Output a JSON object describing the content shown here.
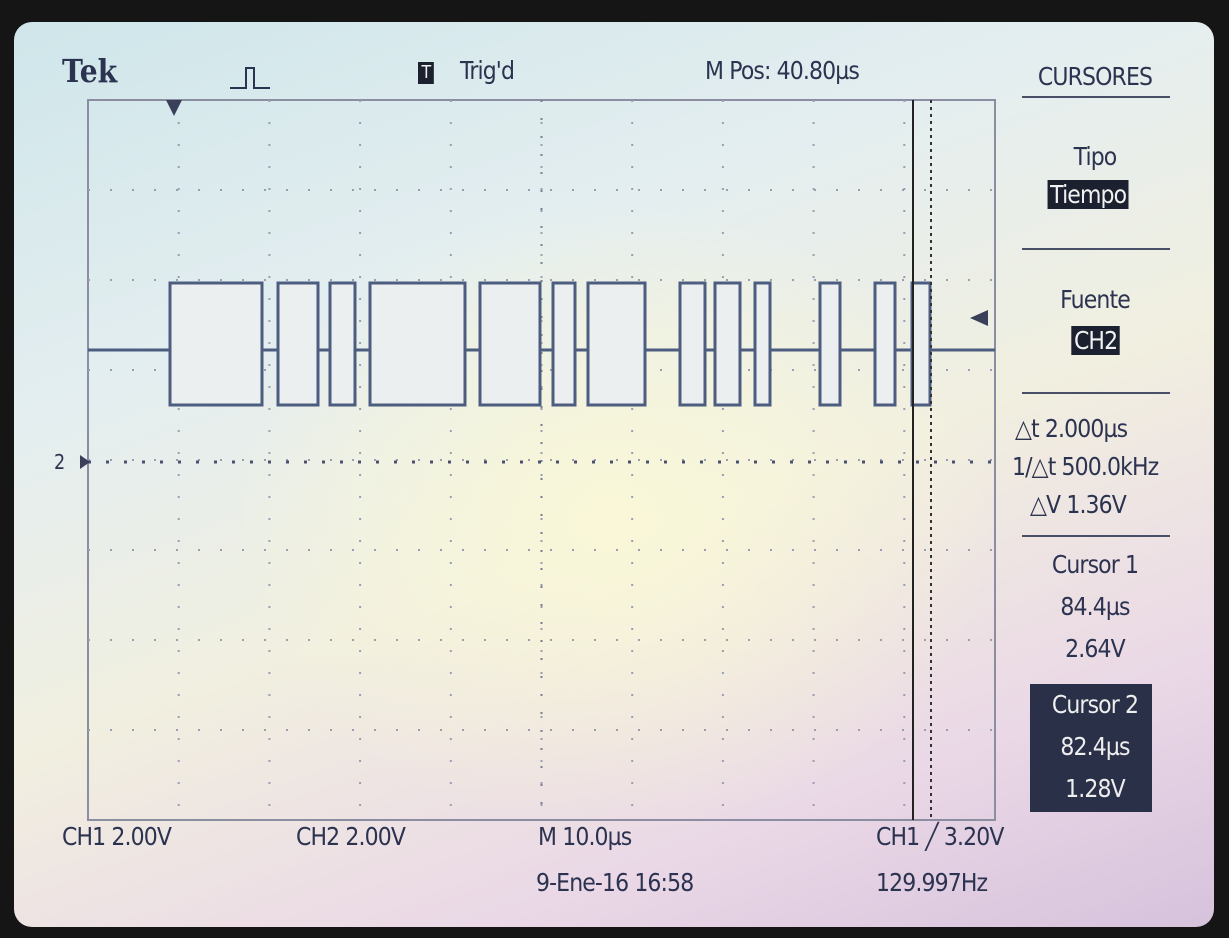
{
  "header": {
    "brand": "Tek",
    "trigger_icon": "T",
    "trigger_status": "Trig'd",
    "position": "M Pos: 40.80µs"
  },
  "menu": {
    "title": "CURSORES",
    "type_label": "Tipo",
    "type_value": "Tiempo",
    "source_label": "Fuente",
    "source_value": "CH2",
    "readouts": [
      "△t 2.000µs",
      "1/△t 500.0kHz",
      "△V 1.36V"
    ],
    "cursor1": {
      "label": "Cursor 1",
      "time": "84.4µs",
      "voltage": "2.64V"
    },
    "cursor2": {
      "label": "Cursor 2",
      "time": "82.4µs",
      "voltage": "1.28V"
    }
  },
  "channel_marker": "2",
  "footer": {
    "ch1": "CH1 2.00V",
    "ch2": "CH2 2.00V",
    "timebase": "M 10.0µs",
    "trigger": "CH1 ╱ 3.20V",
    "date": "9-Ene-16 16:58",
    "frequency": "129.997Hz"
  }
}
